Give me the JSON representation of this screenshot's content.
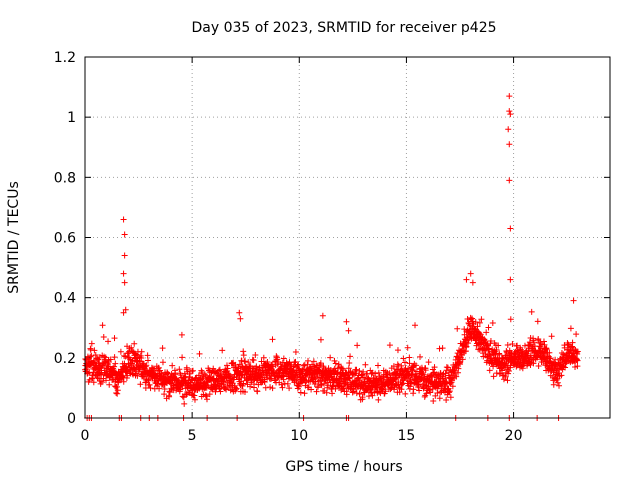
{
  "chart_data": {
    "type": "scatter",
    "title": "Day 035 of 2023, SRMTID for receiver p425",
    "xlabel": "GPS time / hours",
    "ylabel": "SRMTID / TECUs",
    "xlim": [
      0,
      24.5
    ],
    "ylim": [
      0,
      1.2
    ],
    "x_ticks": [
      0,
      5,
      10,
      15,
      20
    ],
    "x_tick_labels": [
      "0",
      "5",
      "10",
      "15",
      "20"
    ],
    "y_ticks": [
      0,
      0.2,
      0.4,
      0.6,
      0.8,
      1.0,
      1.2
    ],
    "y_tick_labels": [
      "0",
      "0.2",
      "0.4",
      "0.6",
      "0.8",
      "1",
      "1.2"
    ],
    "grid": true,
    "marker": "+",
    "color": "#ff0000",
    "series": [
      {
        "name": "SRMTID",
        "baseline_trend": [
          [
            0.0,
            0.17
          ],
          [
            1.0,
            0.17
          ],
          [
            1.5,
            0.13
          ],
          [
            2.0,
            0.18
          ],
          [
            2.5,
            0.18
          ],
          [
            3.0,
            0.15
          ],
          [
            4.0,
            0.12
          ],
          [
            5.0,
            0.11
          ],
          [
            6.0,
            0.12
          ],
          [
            7.0,
            0.14
          ],
          [
            8.0,
            0.14
          ],
          [
            9.0,
            0.16
          ],
          [
            10.0,
            0.14
          ],
          [
            11.0,
            0.14
          ],
          [
            12.0,
            0.13
          ],
          [
            13.0,
            0.11
          ],
          [
            14.0,
            0.12
          ],
          [
            15.0,
            0.14
          ],
          [
            16.0,
            0.12
          ],
          [
            17.0,
            0.12
          ],
          [
            17.5,
            0.2
          ],
          [
            18.0,
            0.3
          ],
          [
            18.5,
            0.25
          ],
          [
            19.0,
            0.2
          ],
          [
            19.5,
            0.17
          ],
          [
            20.0,
            0.2
          ],
          [
            20.5,
            0.2
          ],
          [
            21.0,
            0.22
          ],
          [
            21.5,
            0.2
          ],
          [
            22.0,
            0.15
          ],
          [
            22.5,
            0.2
          ],
          [
            23.0,
            0.22
          ]
        ],
        "highlights": [
          [
            1.8,
            0.66
          ],
          [
            1.85,
            0.61
          ],
          [
            1.85,
            0.54
          ],
          [
            1.8,
            0.48
          ],
          [
            1.85,
            0.45
          ],
          [
            1.8,
            0.35
          ],
          [
            1.9,
            0.36
          ],
          [
            7.2,
            0.35
          ],
          [
            7.25,
            0.33
          ],
          [
            11.1,
            0.34
          ],
          [
            12.2,
            0.32
          ],
          [
            12.3,
            0.29
          ],
          [
            17.8,
            0.46
          ],
          [
            18.0,
            0.48
          ],
          [
            18.1,
            0.45
          ],
          [
            22.8,
            0.39
          ],
          [
            19.8,
            1.07
          ],
          [
            19.8,
            1.02
          ],
          [
            19.85,
            1.01
          ],
          [
            19.75,
            0.96
          ],
          [
            19.8,
            0.91
          ],
          [
            19.8,
            0.79
          ],
          [
            19.85,
            0.63
          ],
          [
            19.85,
            0.46
          ]
        ],
        "zero_points": [
          0.1,
          0.2,
          0.3,
          1.6,
          1.7,
          2.6,
          3.0,
          3.4,
          4.6,
          5.7,
          7.1,
          10.2,
          12.2,
          12.3,
          17.3,
          18.8,
          19.8,
          21.1,
          22.1
        ],
        "points_per_hour": 100,
        "x_end": 23.0,
        "spread": 0.045
      }
    ]
  }
}
